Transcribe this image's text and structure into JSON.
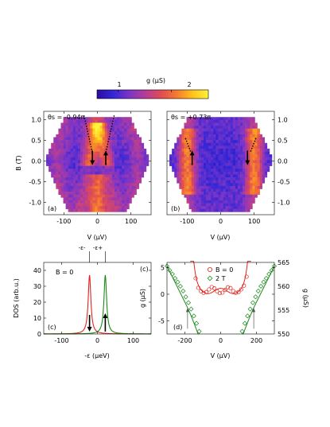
{
  "colorbar": {
    "title": "g (μS)",
    "ticks": [
      {
        "value": 1,
        "label": "1"
      },
      {
        "value": 2,
        "label": "2"
      }
    ],
    "range": [
      0.6,
      2.7
    ],
    "colors": [
      "#2d0aa0",
      "#3326d6",
      "#7a34c8",
      "#b33c9a",
      "#df4a55",
      "#f57a30",
      "#ffc21a",
      "#fff33a"
    ]
  },
  "panel_a": {
    "annotation": "θs = -0.94π",
    "label": "(a)",
    "xlabel": "V (μV)",
    "ylabel": "B (T)",
    "xlim": [
      -160,
      160
    ],
    "ylim": [
      -1.3,
      1.2
    ],
    "xticks": [
      -100,
      0,
      100
    ],
    "yticks": [
      -1.0,
      -0.5,
      0.0,
      0.5,
      1.0
    ],
    "ytick_labels": [
      "-1.0",
      "-0.5",
      "0.0",
      "0.5",
      "1.0"
    ],
    "arrows": [
      {
        "x": -15,
        "direction": "down"
      },
      {
        "x": 25,
        "direction": "up"
      }
    ],
    "dotted_lines": [
      {
        "from": [
          -40,
          1.1
        ],
        "to": [
          -15,
          0.2
        ]
      },
      {
        "from": [
          50,
          1.1
        ],
        "to": [
          25,
          0.2
        ]
      }
    ]
  },
  "panel_b": {
    "annotation": "θs = +0.73π",
    "label": "(b)",
    "xlabel": "V (μV)",
    "xlim": [
      -160,
      160
    ],
    "ylim": [
      -1.3,
      1.2
    ],
    "xticks": [
      -100,
      0,
      100
    ],
    "yticks": [
      -1.0,
      -0.5,
      0.0,
      0.5,
      1.0
    ],
    "ytick_labels": [
      "-1.0",
      "-0.5",
      "0.0",
      "0.5",
      "1.0"
    ],
    "arrows": [
      {
        "x": -85,
        "direction": "up"
      },
      {
        "x": 80,
        "direction": "down"
      }
    ],
    "dotted_lines": [
      {
        "from": [
          -105,
          0.55
        ],
        "to": [
          -88,
          0.2
        ]
      },
      {
        "from": [
          105,
          0.55
        ],
        "to": [
          88,
          0.2
        ]
      }
    ]
  },
  "chart_data": [
    {
      "type": "heatmap",
      "panel": "(a)",
      "x_label": "V (μV)",
      "y_label": "B (T)",
      "x_range": [
        -160,
        160
      ],
      "y_range": [
        -1.3,
        1.2
      ],
      "value_label": "g (μS)",
      "value_range": [
        0.6,
        2.7
      ]
    },
    {
      "type": "heatmap",
      "panel": "(b)",
      "x_label": "V (μV)",
      "y_label": "B (T)",
      "x_range": [
        -160,
        160
      ],
      "y_range": [
        -1.3,
        1.2
      ],
      "value_label": "g (μS)",
      "value_range": [
        0.6,
        2.7
      ]
    },
    {
      "type": "line",
      "panel": "(c)",
      "annotation": "B = 0",
      "panel_labels": [
        "(c)",
        "(c)"
      ],
      "xlabel": "-ε (μeV)",
      "ylabel": "DOS (arb.u.)",
      "xlim": [
        -150,
        150
      ],
      "ylim": [
        0,
        45
      ],
      "xticks": [
        -100,
        0,
        100
      ],
      "yticks": [
        0,
        10,
        20,
        30,
        40
      ],
      "peak_labels": [
        "-ε-",
        "-ε+"
      ],
      "series": [
        {
          "color": "#e0231d",
          "center": -22,
          "height": 37,
          "hwhm": 4.5
        },
        {
          "color": "#1a8a1a",
          "center": 22,
          "height": 37,
          "hwhm": 4.5
        }
      ],
      "arrows": [
        {
          "x": -22,
          "direction": "down"
        },
        {
          "x": 22,
          "direction": "up"
        }
      ]
    },
    {
      "type": "scatter",
      "panel": "(d)",
      "label": "(d)",
      "xlabel": "V (μV)",
      "ylabel_left": "g (μS)",
      "ylabel_right": "g (μS)",
      "xlim": [
        -300,
        300
      ],
      "ylim_left": [
        -7.5,
        6
      ],
      "ylim_right": [
        550,
        565
      ],
      "xticks": [
        -200,
        0,
        200
      ],
      "yticks_left": [
        -5,
        0,
        5
      ],
      "yticks_right": [
        550,
        555,
        560,
        565
      ],
      "legend": [
        "B = 0",
        "2 T"
      ],
      "legend_position": "top-center",
      "arrows_x": [
        -185,
        185
      ],
      "series": [
        {
          "name": "B = 0",
          "marker": "circle",
          "color": "#e0231d",
          "axis": "left",
          "x": [
            -140,
            -125,
            -110,
            -95,
            -80,
            -65,
            -50,
            -35,
            -20,
            -5,
            10,
            25,
            40,
            55,
            70,
            85,
            100,
            115,
            130,
            145
          ],
          "y": [
            3.0,
            1.2,
            0.55,
            0.25,
            0.4,
            0.9,
            1.35,
            1.1,
            0.55,
            0.2,
            0.3,
            0.8,
            1.3,
            1.15,
            0.6,
            0.25,
            0.4,
            0.9,
            1.6,
            3.3
          ]
        },
        {
          "name": "2 T",
          "marker": "diamond",
          "color": "#1a8a1a",
          "axis": "left",
          "x": [
            -300,
            -285,
            -270,
            -255,
            -240,
            -225,
            -210,
            -195,
            -180,
            -165,
            -150,
            -135,
            -120,
            120,
            135,
            150,
            165,
            180,
            195,
            210,
            225,
            240,
            255,
            270,
            285,
            300
          ],
          "y": [
            5.3,
            4.5,
            3.8,
            3.0,
            2.3,
            1.5,
            0.6,
            -0.5,
            -1.6,
            -2.8,
            -4.1,
            -5.5,
            -7.0,
            -7.0,
            -5.5,
            -4.1,
            -2.8,
            -1.6,
            -0.5,
            0.6,
            1.5,
            2.3,
            3.0,
            3.8,
            4.5,
            5.3
          ]
        }
      ]
    }
  ]
}
